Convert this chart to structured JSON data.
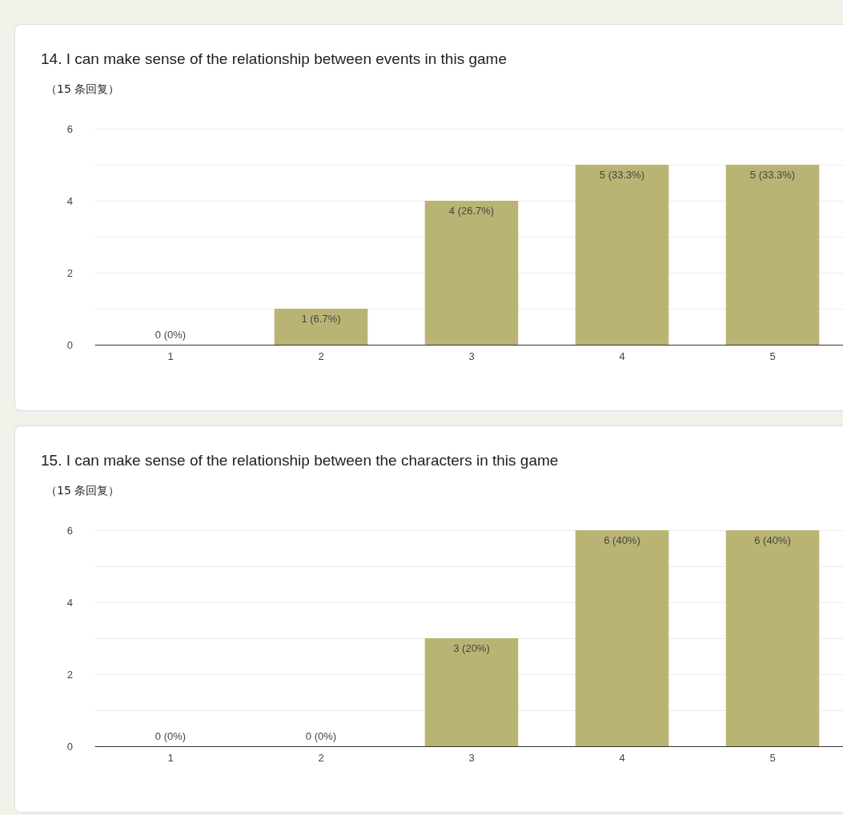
{
  "chart_data": [
    {
      "type": "bar",
      "title": "14. I can make sense of the relationship between events in this game",
      "subtitle": "（15 条回复）",
      "categories": [
        "1",
        "2",
        "3",
        "4",
        "5"
      ],
      "values": [
        0,
        1,
        4,
        5,
        5
      ],
      "color": "#bab474",
      "value_labels": [
        "0 (0%)",
        "1 (6.7%)",
        "4 (26.7%)",
        "5 (33.3%)",
        "5 (33.3%)"
      ],
      "ylim": [
        0,
        6
      ],
      "yticks": [
        0,
        {
          "value": 1,
          "label": null
        },
        2,
        {
          "value": 3,
          "label": null
        },
        4,
        {
          "value": 5,
          "label": null
        },
        6
      ],
      "grid": "y"
    },
    {
      "type": "bar",
      "title": "15. I can make sense of the relationship between the characters in this game",
      "subtitle": "（15 条回复）",
      "categories": [
        "1",
        "2",
        "3",
        "4",
        "5"
      ],
      "values": [
        0,
        0,
        3,
        6,
        6
      ],
      "color": "#bab474",
      "value_labels": [
        "0 (0%)",
        "0 (0%)",
        "3 (20%)",
        "6 (40%)",
        "6 (40%)"
      ],
      "ylim": [
        0,
        6
      ],
      "yticks": [
        0,
        {
          "value": 1,
          "label": null
        },
        2,
        {
          "value": 3,
          "label": null
        },
        4,
        {
          "value": 5,
          "label": null
        },
        6
      ],
      "grid": "y"
    }
  ]
}
